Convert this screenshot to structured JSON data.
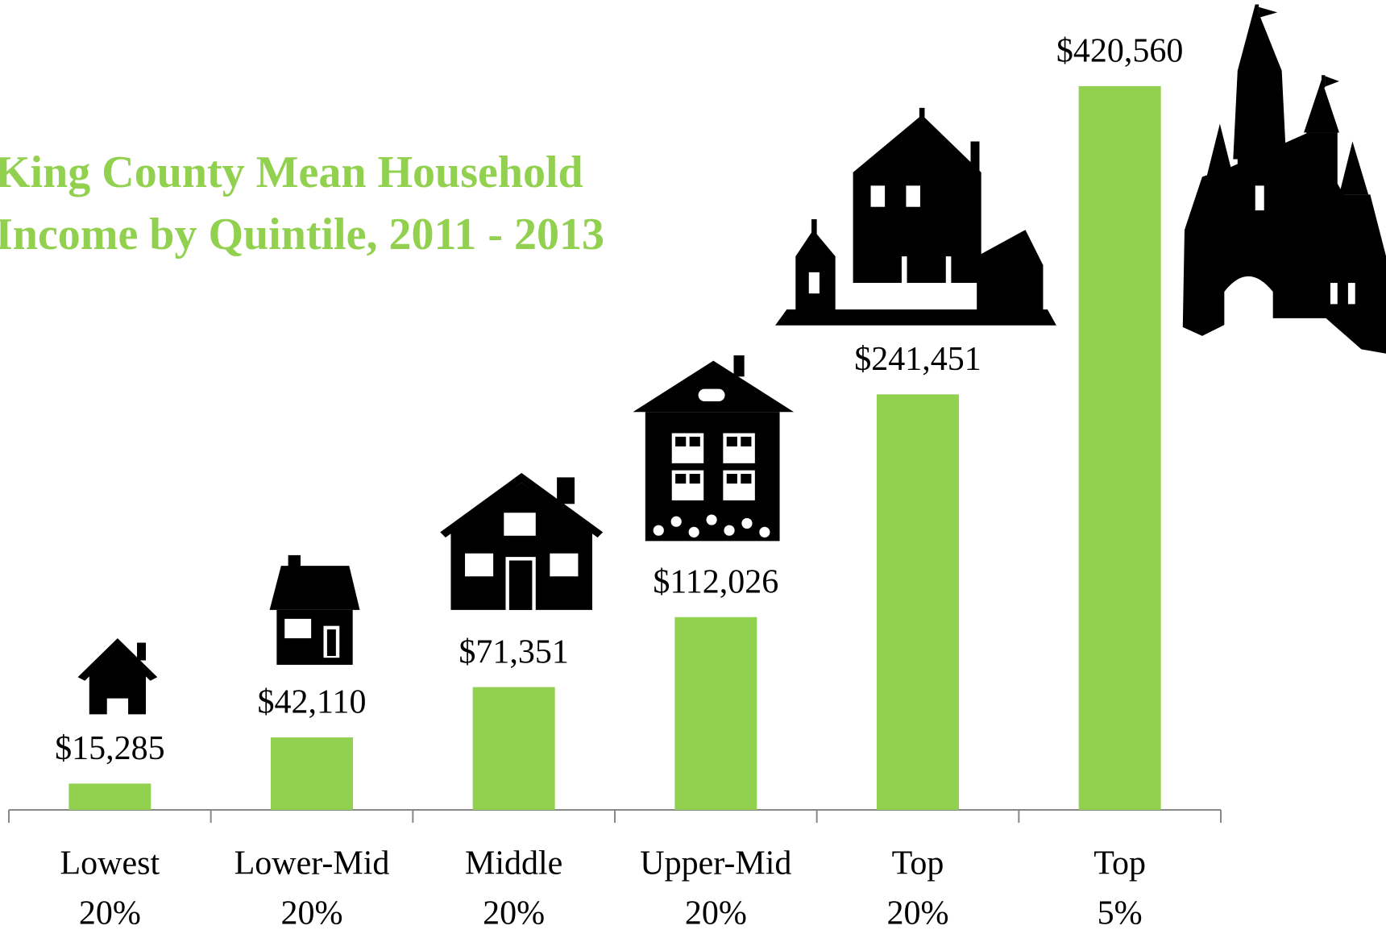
{
  "chart_data": {
    "type": "bar",
    "title": [
      "King County Mean Household",
      "Income by Quintile, 2011 - 2013"
    ],
    "categories": [
      [
        "Lowest",
        "20%"
      ],
      [
        "Lower-Mid",
        "20%"
      ],
      [
        "Middle",
        "20%"
      ],
      [
        "Upper-Mid",
        "20%"
      ],
      [
        "Top",
        "20%"
      ],
      [
        "Top",
        "5%"
      ]
    ],
    "values": [
      15285,
      42110,
      71351,
      112026,
      241451,
      420560
    ],
    "value_labels": [
      "$15,285",
      "$42,110",
      "$71,351",
      "$112,026",
      "$241,451",
      "$420,560"
    ],
    "color": "#92d050",
    "ylim": [
      0,
      450000
    ]
  }
}
